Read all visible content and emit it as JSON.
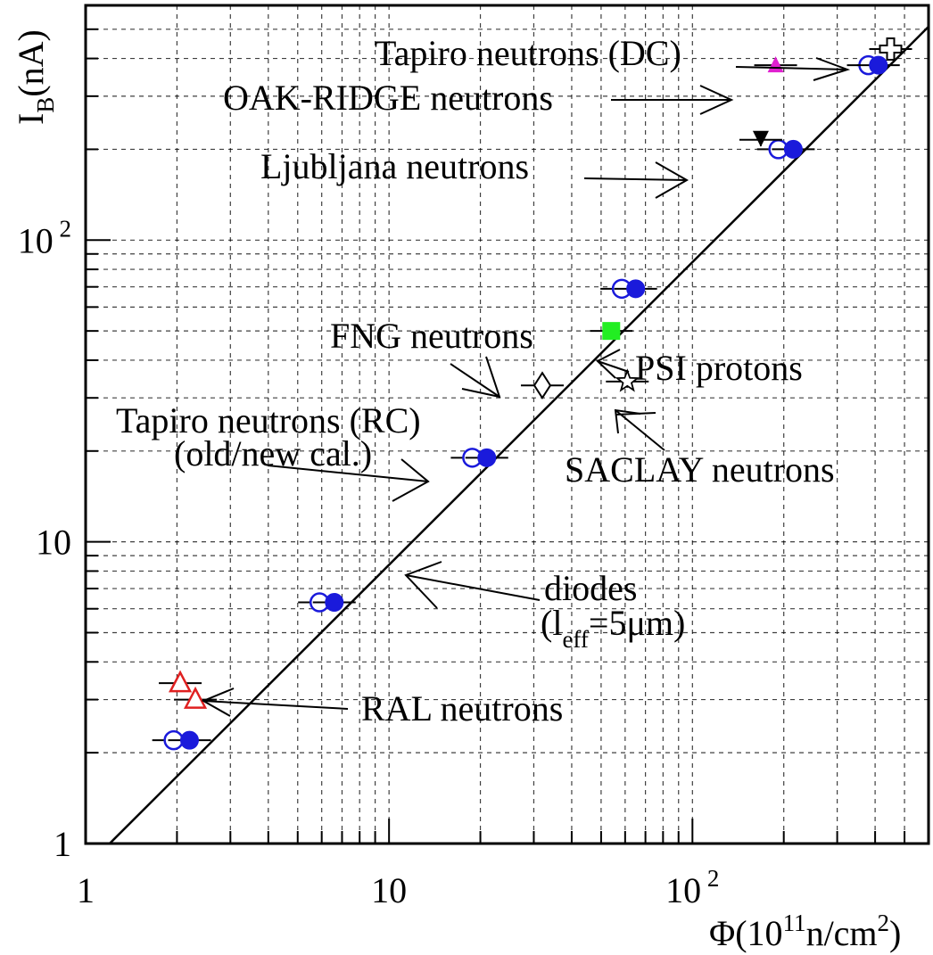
{
  "chart_data": {
    "type": "scatter",
    "x_scale": "log",
    "y_scale": "log",
    "xlim": [
      1,
      600
    ],
    "ylim": [
      1,
      600
    ],
    "grid": true,
    "xlabel": "Φ(10¹¹n/cm²)",
    "ylabel": "I_B(nA)",
    "x_ticks": [
      {
        "value": 1,
        "label": "1",
        "sup": ""
      },
      {
        "value": 10,
        "label": "10",
        "sup": ""
      },
      {
        "value": 100,
        "label": "10",
        "sup": "2"
      }
    ],
    "y_ticks": [
      {
        "value": 1,
        "label": "1",
        "sup": ""
      },
      {
        "value": 10,
        "label": "10",
        "sup": ""
      },
      {
        "value": 100,
        "label": "10",
        "sup": "2"
      }
    ],
    "fit_line": {
      "x": [
        1.2,
        600
      ],
      "y": [
        1.0,
        510
      ]
    },
    "series": [
      {
        "group": "Tapiro neutrons (RC) old cal.",
        "marker": "open-circle",
        "color": "#1a1adb",
        "points": [
          [
            1.95,
            2.2
          ],
          [
            5.9,
            6.3
          ],
          [
            18.8,
            19
          ],
          [
            58.5,
            69
          ],
          [
            192,
            200
          ],
          [
            380,
            380
          ]
        ]
      },
      {
        "group": "Tapiro neutrons (RC) new cal.",
        "marker": "filled-circle",
        "color": "#1a1adb",
        "points": [
          [
            2.2,
            2.2
          ],
          [
            6.6,
            6.3
          ],
          [
            21,
            19
          ],
          [
            65,
            69
          ],
          [
            215,
            200
          ],
          [
            410,
            380
          ]
        ]
      },
      {
        "group": "RAL neutrons",
        "marker": "open-triangle",
        "color": "#e02020",
        "points": [
          [
            2.05,
            3.4
          ],
          [
            2.3,
            3.0
          ]
        ]
      },
      {
        "group": "FNG neutrons",
        "marker": "open-diamond",
        "color": "#000000",
        "points": [
          [
            32,
            33
          ]
        ]
      },
      {
        "group": "PSI protons",
        "marker": "filled-square",
        "color": "#22ee22",
        "points": [
          [
            54,
            50
          ]
        ]
      },
      {
        "group": "SACLAY neutrons",
        "marker": "open-star",
        "color": "#000000",
        "points": [
          [
            61,
            34
          ]
        ]
      },
      {
        "group": "Ljubljana neutrons",
        "marker": "filled-down-triangle",
        "color": "#000000",
        "points": [
          [
            168,
            215
          ]
        ]
      },
      {
        "group": "OAK-RIDGE neutrons",
        "marker": "filled-triangle",
        "color": "#e020d0",
        "points": [
          [
            188,
            380
          ]
        ]
      },
      {
        "group": "Tapiro neutrons (DC)",
        "marker": "open-cross",
        "color": "#000000",
        "points": [
          [
            450,
            430
          ]
        ]
      }
    ],
    "annotations": [
      {
        "id": "tapiro-dc",
        "text": "Tapiro neutrons (DC)"
      },
      {
        "id": "oak-ridge",
        "text": "OAK-RIDGE neutrons"
      },
      {
        "id": "ljubljana",
        "text": "Ljubljana neutrons"
      },
      {
        "id": "fng",
        "text": "FNG neutrons"
      },
      {
        "id": "psi",
        "text": "PSI protons"
      },
      {
        "id": "tapiro-rc-1",
        "text": "Tapiro neutrons (RC)"
      },
      {
        "id": "tapiro-rc-2",
        "text": "(old/new cal.)"
      },
      {
        "id": "saclay",
        "text": "SACLAY neutrons"
      },
      {
        "id": "diodes",
        "text": "diodes"
      },
      {
        "id": "ral",
        "text": "RAL neutrons"
      }
    ],
    "diodes_label": {
      "open": "(l",
      "sub": "eff",
      "rest": "=5μm)"
    }
  }
}
